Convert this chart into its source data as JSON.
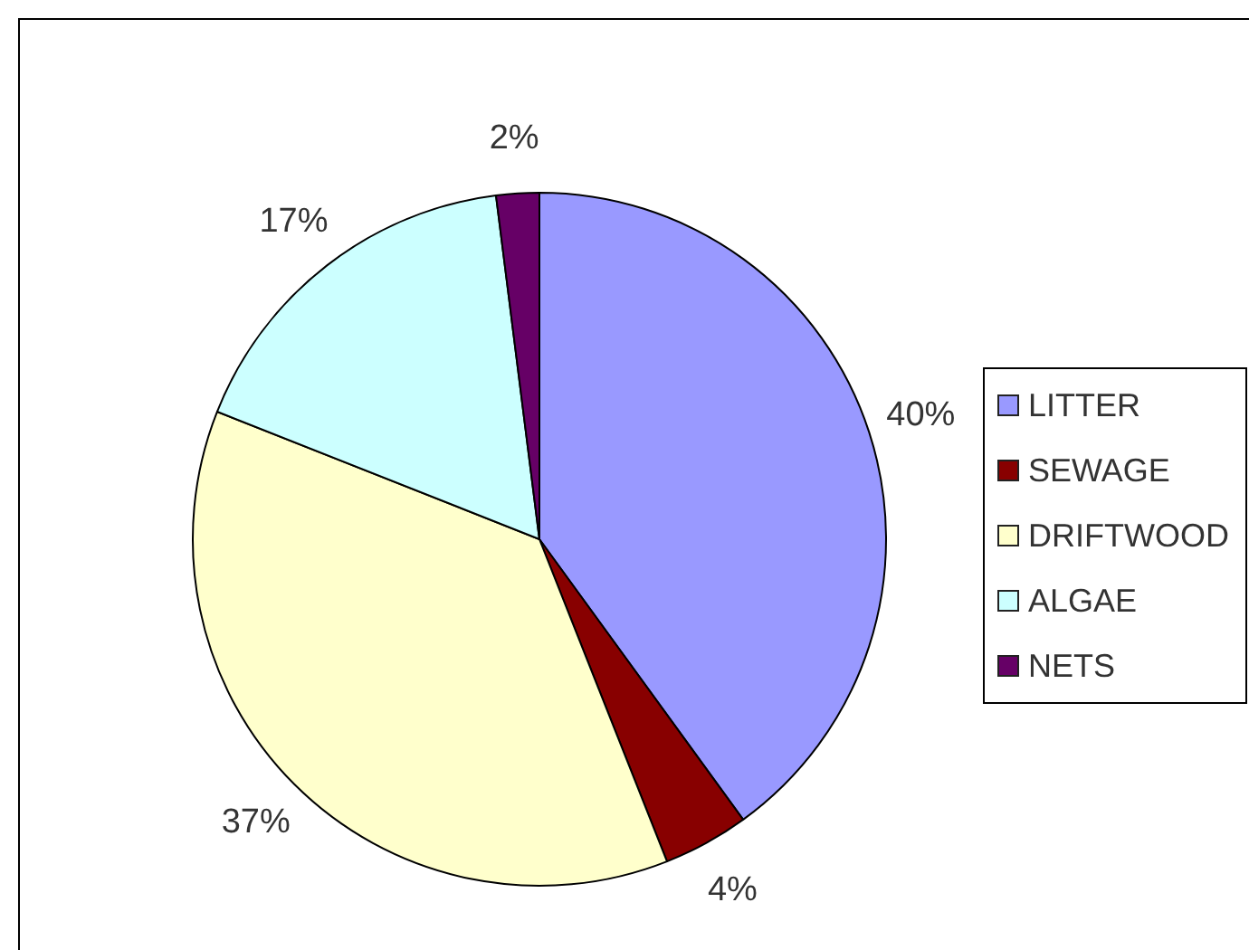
{
  "chart_data": {
    "type": "pie",
    "categories": [
      "LITTER",
      "SEWAGE",
      "DRIFTWOOD",
      "ALGAE",
      "NETS"
    ],
    "values": [
      40,
      4,
      37,
      17,
      2
    ],
    "value_labels": [
      "40%",
      "4%",
      "37%",
      "17%",
      "2%"
    ],
    "colors": [
      "#9999ff",
      "#880000",
      "#ffffcc",
      "#ccffff",
      "#660066"
    ],
    "legend": "right"
  }
}
